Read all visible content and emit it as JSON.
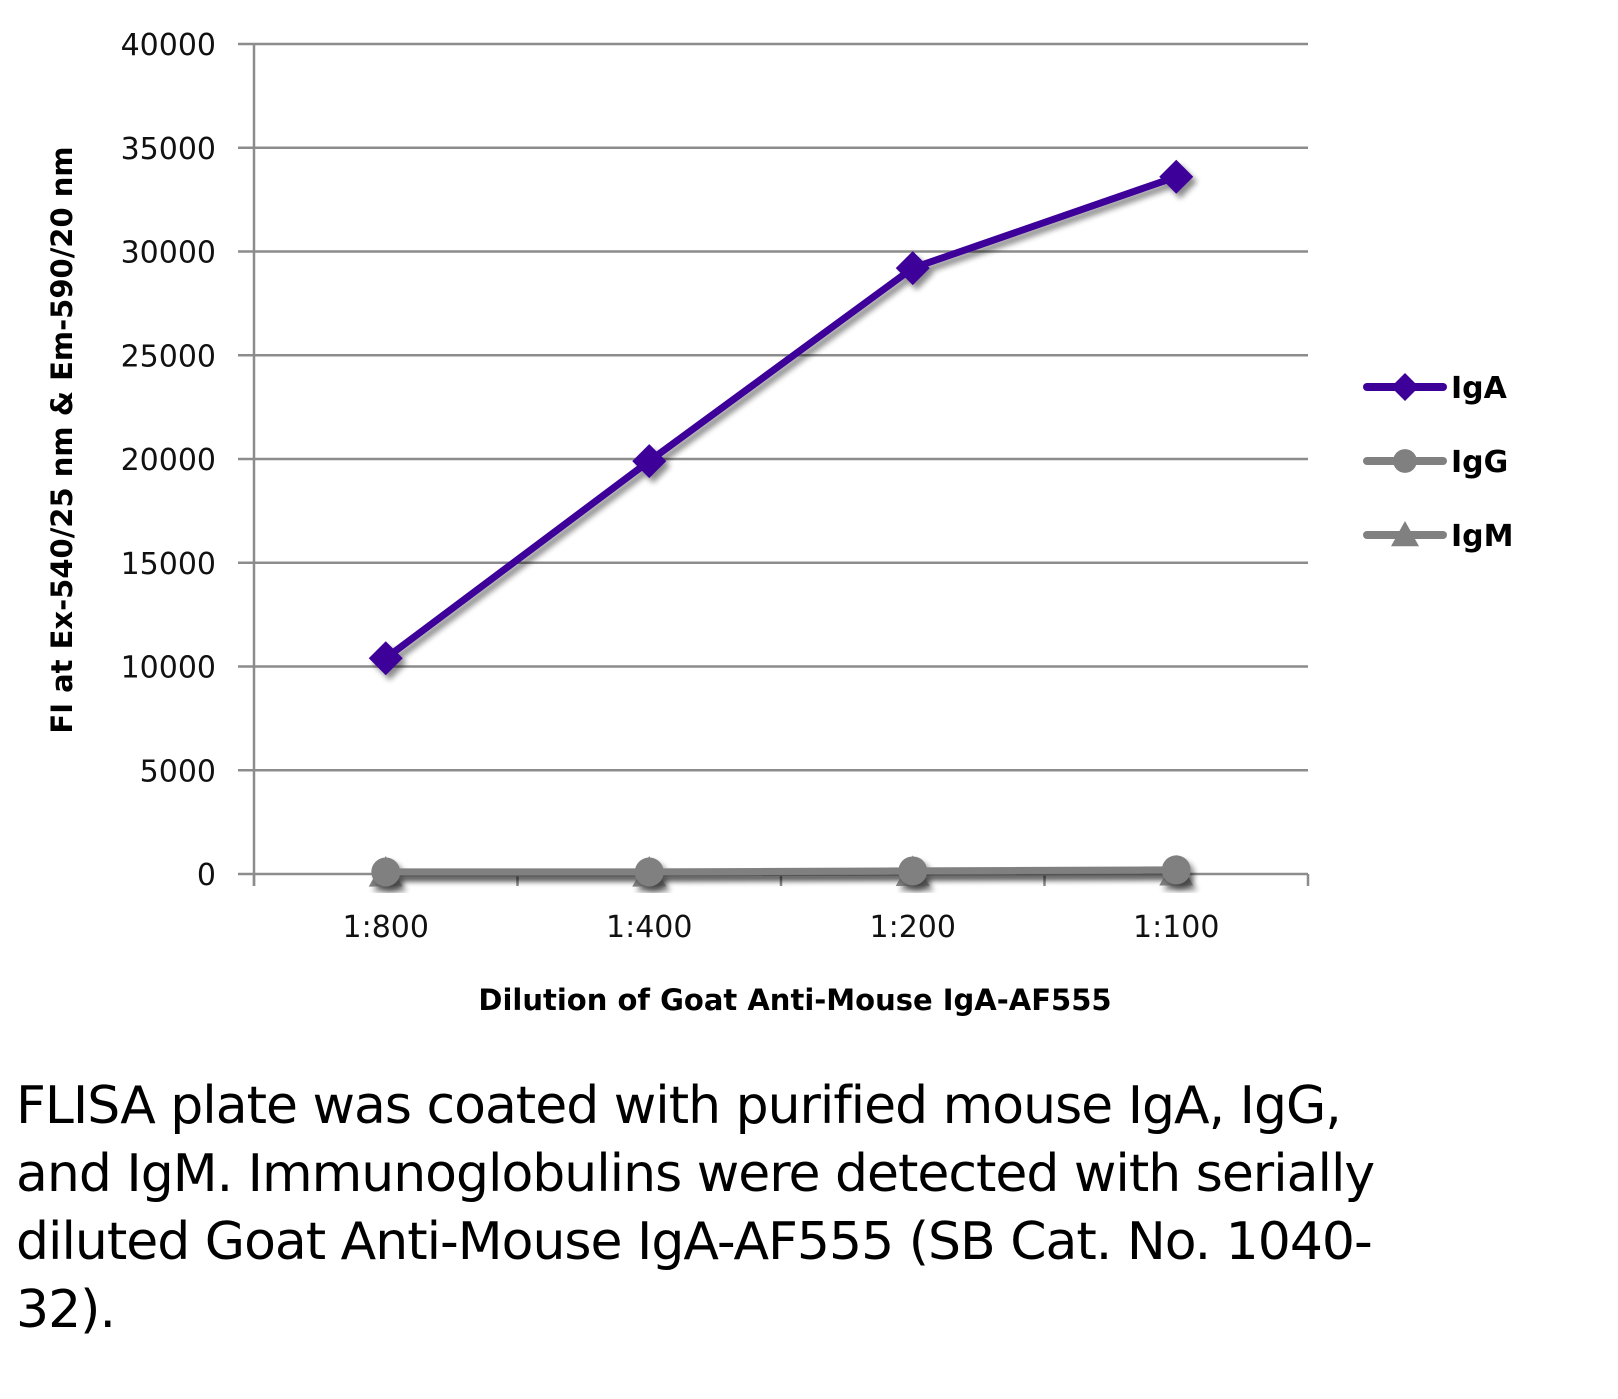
{
  "chart_data": {
    "type": "line",
    "title": "",
    "xlabel": "Dilution of Goat Anti-Mouse IgA-AF555",
    "ylabel": "FI at Ex-540/25 nm & Em-590/20 nm",
    "categories": [
      "1:800",
      "1:400",
      "1:200",
      "1:100"
    ],
    "ylim": [
      0,
      40000
    ],
    "yticks": [
      0,
      5000,
      10000,
      15000,
      20000,
      25000,
      30000,
      35000,
      40000
    ],
    "ytick_labels": [
      "0",
      "5000",
      "10000",
      "15000",
      "20000",
      "25000",
      "30000",
      "35000",
      "40000"
    ],
    "grid": true,
    "legend_position": "right",
    "series": [
      {
        "name": "IgA",
        "marker": "diamond",
        "color": "#3d0099",
        "values": [
          10400,
          19900,
          29200,
          33600
        ]
      },
      {
        "name": "IgG",
        "marker": "circle",
        "color": "#808080",
        "values": [
          100,
          100,
          150,
          200
        ]
      },
      {
        "name": "IgM",
        "marker": "triangle",
        "color": "#808080",
        "values": [
          50,
          50,
          80,
          100
        ]
      }
    ]
  },
  "caption": "FLISA plate was coated with purified mouse IgA, IgG, and IgM.  Immunoglobulins were detected with serially diluted Goat Anti-Mouse IgA-AF555 (SB Cat. No. 1040-32)."
}
